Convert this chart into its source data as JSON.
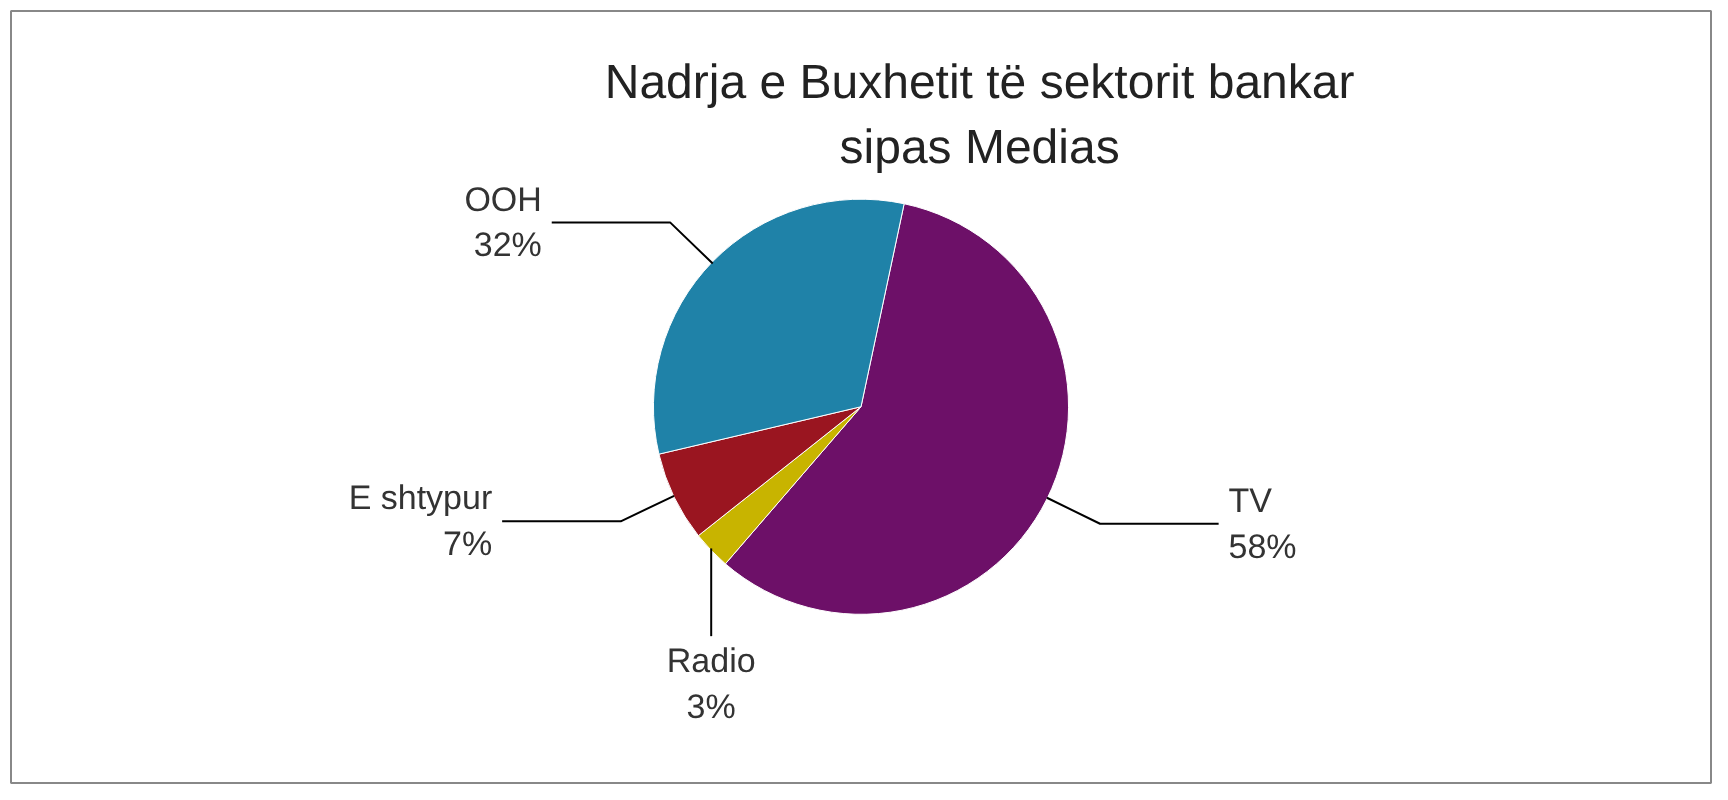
{
  "chart_data": {
    "type": "pie",
    "title": "Nadrja e Buxhetit të sektorit bankar\nsipas Medias",
    "categories": [
      "TV",
      "Radio",
      "E shtypur",
      "OOH"
    ],
    "values": [
      58,
      3,
      7,
      32
    ],
    "colors": [
      "#6d1068",
      "#c8b400",
      "#9a1520",
      "#1f82a8"
    ],
    "value_labels": [
      "58%",
      "3%",
      "7%",
      "32%"
    ]
  }
}
